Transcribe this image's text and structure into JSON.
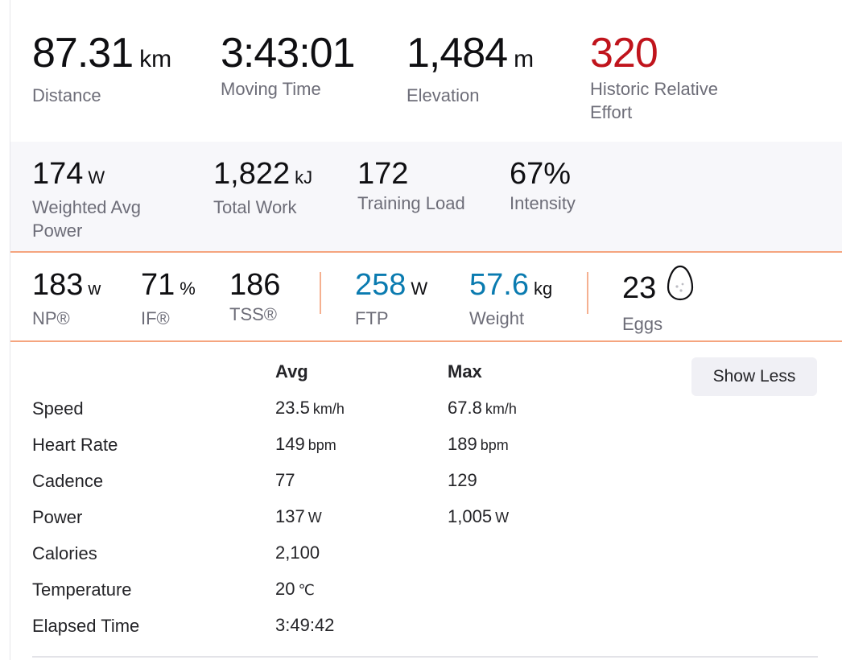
{
  "primary": [
    {
      "value": "87.31",
      "unit": "km",
      "label": "Distance"
    },
    {
      "value": "3:43:01",
      "unit": "",
      "label": "Moving Time"
    },
    {
      "value": "1,484",
      "unit": "m",
      "label": "Elevation"
    },
    {
      "value": "320",
      "unit": "",
      "label": "Historic Relative Effort",
      "color": "#c0141c"
    }
  ],
  "secondary": [
    {
      "value": "174",
      "unit": "W",
      "label": "Weighted Avg Power"
    },
    {
      "value": "1,822",
      "unit": "kJ",
      "label": "Total Work"
    },
    {
      "value": "172",
      "unit": "",
      "label": "Training Load"
    },
    {
      "value": "67%",
      "unit": "",
      "label": "Intensity"
    }
  ],
  "power_metrics": [
    {
      "value": "183",
      "unit": "w",
      "label": "NP®"
    },
    {
      "value": "71",
      "unit": "%",
      "label": "IF®"
    },
    {
      "value": "186",
      "unit": "",
      "label": "TSS®"
    },
    {
      "value": "258",
      "unit": "W",
      "label": "FTP",
      "color": "#0a7bb0"
    },
    {
      "value": "57.6",
      "unit": "kg",
      "label": "Weight",
      "color": "#0a7bb0"
    },
    {
      "value": "23",
      "unit": "",
      "label": "Eggs",
      "icon": "egg-icon"
    }
  ],
  "table": {
    "avg_header": "Avg",
    "max_header": "Max",
    "show_less_label": "Show Less",
    "rows": [
      {
        "label": "Speed",
        "avg": "23.5",
        "avg_unit": "km/h",
        "max": "67.8",
        "max_unit": "km/h"
      },
      {
        "label": "Heart Rate",
        "avg": "149",
        "avg_unit": "bpm",
        "max": "189",
        "max_unit": "bpm"
      },
      {
        "label": "Cadence",
        "avg": "77",
        "avg_unit": "",
        "max": "129",
        "max_unit": ""
      },
      {
        "label": "Power",
        "avg": "137",
        "avg_unit": "W",
        "max": "1,005",
        "max_unit": "W"
      },
      {
        "label": "Calories",
        "avg": "2,100",
        "avg_unit": "",
        "max": "",
        "max_unit": ""
      },
      {
        "label": "Temperature",
        "avg": "20",
        "avg_unit": "℃",
        "max": "",
        "max_unit": ""
      },
      {
        "label": "Elapsed Time",
        "avg": "3:49:42",
        "avg_unit": "",
        "max": "",
        "max_unit": ""
      }
    ]
  },
  "colors": {
    "accent_divider": "#f5a57f",
    "effort_red": "#c0141c",
    "info_blue": "#0a7bb0"
  }
}
